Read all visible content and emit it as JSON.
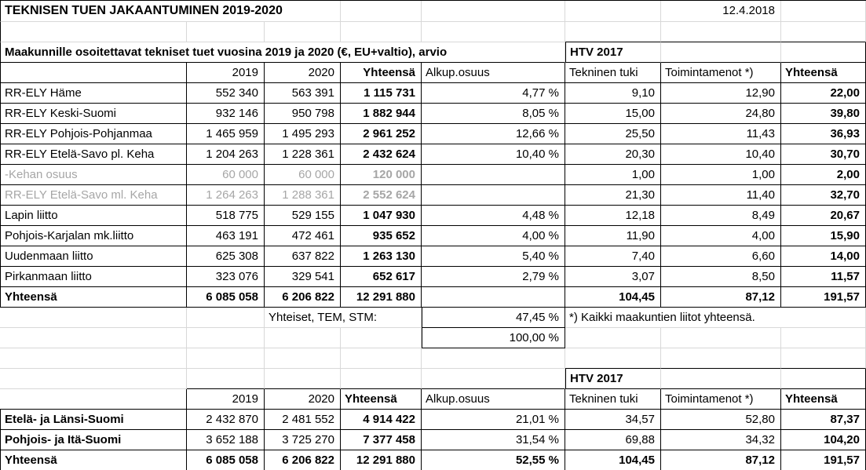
{
  "colors": {
    "gridline": "#d8d8d8",
    "muted_text": "#a6a6a6",
    "border": "#000000"
  },
  "sheet": {
    "title": "TEKNISEN TUEN JAKAANTUMINEN 2019-2020",
    "date": "12.4.2018"
  },
  "top_table": {
    "subtitle": "Maakunnille osoitettavat tekniset tuet vuosina 2019 ja 2020 (€, EU+valtio), arvio",
    "htv_label": "HTV 2017",
    "headers": {
      "year1": "2019",
      "year2": "2020",
      "total": "Yhteensä",
      "share": "Alkup.osuus",
      "tech_support": "Tekninen tuki",
      "operating_costs": "Toimintamenot *)",
      "htv_total": "Yhteensä"
    },
    "rows": [
      {
        "label": "RR-ELY Häme",
        "y2019": "552 340",
        "y2020": "563 391",
        "total": "1 115 731",
        "share": "4,77 %",
        "tech": "9,10",
        "oper": "12,90",
        "htv": "22,00",
        "gray": false,
        "bold": false
      },
      {
        "label": "RR-ELY Keski-Suomi",
        "y2019": "932 146",
        "y2020": "950 798",
        "total": "1 882 944",
        "share": "8,05 %",
        "tech": "15,00",
        "oper": "24,80",
        "htv": "39,80",
        "gray": false,
        "bold": false
      },
      {
        "label": "RR-ELY Pohjois-Pohjanmaa",
        "y2019": "1 465 959",
        "y2020": "1 495 293",
        "total": "2 961 252",
        "share": "12,66 %",
        "tech": "25,50",
        "oper": "11,43",
        "htv": "36,93",
        "gray": false,
        "bold": false
      },
      {
        "label": "RR-ELY Etelä-Savo pl. Keha",
        "y2019": "1 204 263",
        "y2020": "1 228 361",
        "total": "2 432 624",
        "share": "10,40 %",
        "tech": "20,30",
        "oper": "10,40",
        "htv": "30,70",
        "gray": false,
        "bold": false
      },
      {
        "label": " -Kehan osuus",
        "y2019": "60 000",
        "y2020": "60 000",
        "total": "120 000",
        "share": "",
        "tech": "1,00",
        "oper": "1,00",
        "htv": "2,00",
        "gray": true,
        "bold": false
      },
      {
        "label": "RR-ELY Etelä-Savo ml. Keha",
        "y2019": "1 264 263",
        "y2020": "1 288 361",
        "total": "2 552 624",
        "share": "",
        "tech": "21,30",
        "oper": "11,40",
        "htv": "32,70",
        "gray": true,
        "bold": false
      },
      {
        "label": "Lapin liitto",
        "y2019": "518 775",
        "y2020": "529 155",
        "total": "1 047 930",
        "share": "4,48 %",
        "tech": "12,18",
        "oper": "8,49",
        "htv": "20,67",
        "gray": false,
        "bold": false
      },
      {
        "label": "Pohjois-Karjalan mk.liitto",
        "y2019": "463 191",
        "y2020": "472 461",
        "total": "935 652",
        "share": "4,00 %",
        "tech": "11,90",
        "oper": "4,00",
        "htv": "15,90",
        "gray": false,
        "bold": false
      },
      {
        "label": "Uudenmaan liitto",
        "y2019": "625 308",
        "y2020": "637 822",
        "total": "1 263 130",
        "share": "5,40 %",
        "tech": "7,40",
        "oper": "6,60",
        "htv": "14,00",
        "gray": false,
        "bold": false
      },
      {
        "label": "Pirkanmaan liitto",
        "y2019": "323 076",
        "y2020": "329 541",
        "total": "652 617",
        "share": "2,79 %",
        "tech": "3,07",
        "oper": "8,50",
        "htv": "11,57",
        "gray": false,
        "bold": false
      },
      {
        "label": "Yhteensä",
        "y2019": "6 085 058",
        "y2020": "6 206 822",
        "total": "12 291 880",
        "share": "",
        "tech": "104,45",
        "oper": "87,12",
        "htv": "191,57",
        "gray": false,
        "bold": true
      }
    ],
    "shared_label": "Yhteiset, TEM, STM:",
    "shared_share": "47,45 %",
    "share_total": "100,00 %",
    "footnote": "*) Kaikki maakuntien liitot yhteensä."
  },
  "bottom_table": {
    "htv_label": "HTV 2017",
    "headers": {
      "year1": "2019",
      "year2": "2020",
      "total": "Yhteensä",
      "share": "Alkup.osuus",
      "tech_support": "Tekninen tuki",
      "operating_costs": "Toimintamenot *)",
      "htv_total": "Yhteensä"
    },
    "rows": [
      {
        "label": "Etelä- ja Länsi-Suomi",
        "y2019": "2 432 870",
        "y2020": "2 481 552",
        "total": "4 914 422",
        "share": "21,01 %",
        "tech": "34,57",
        "oper": "52,80",
        "htv": "87,37",
        "gray": false,
        "bold": false
      },
      {
        "label": "Pohjois- ja Itä-Suomi",
        "y2019": "3 652 188",
        "y2020": "3 725 270",
        "total": "7 377 458",
        "share": "31,54 %",
        "tech": "69,88",
        "oper": "34,32",
        "htv": "104,20",
        "gray": false,
        "bold": false
      },
      {
        "label": "Yhteensä",
        "y2019": "6 085 058",
        "y2020": "6 206 822",
        "total": "12 291 880",
        "share": "52,55 %",
        "tech": "104,45",
        "oper": "87,12",
        "htv": "191,57",
        "gray": false,
        "bold": true
      }
    ]
  }
}
